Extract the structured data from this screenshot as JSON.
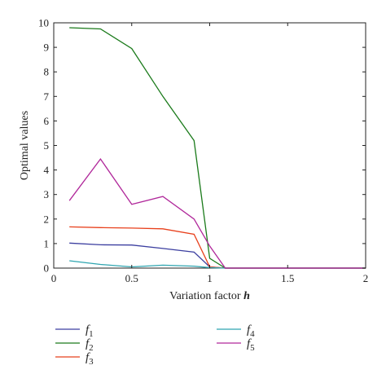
{
  "chart_data": {
    "type": "line",
    "title": "",
    "xlabel": "Variation factor",
    "xlabel_var": "h",
    "ylabel": "Optimal values",
    "xlim": [
      0,
      2
    ],
    "ylim": [
      0,
      10
    ],
    "xticks": [
      0,
      0.5,
      1,
      1.5,
      2
    ],
    "xtick_labels": [
      "0",
      "0.5",
      "1",
      "1.5",
      "2"
    ],
    "yticks": [
      0,
      1,
      2,
      3,
      4,
      5,
      6,
      7,
      8,
      9,
      10
    ],
    "ytick_labels": [
      "0",
      "1",
      "2",
      "3",
      "4",
      "5",
      "6",
      "7",
      "8",
      "9",
      "10"
    ],
    "grid": false,
    "legend_position": "bottom",
    "series": [
      {
        "name": "f",
        "sub": "1",
        "color": "#3c3fa0",
        "x": [
          0.1,
          0.3,
          0.5,
          0.7,
          0.9,
          1.0,
          1.1,
          1.3,
          1.5,
          1.7,
          1.9,
          2.0
        ],
        "y": [
          1.02,
          0.95,
          0.94,
          0.8,
          0.65,
          0.05,
          0,
          0,
          0,
          0,
          0,
          0
        ]
      },
      {
        "name": "f",
        "sub": "2",
        "color": "#1a7a1a",
        "x": [
          0.1,
          0.3,
          0.5,
          0.7,
          0.9,
          1.0,
          1.1,
          1.3,
          1.5,
          1.7,
          1.9,
          2.0
        ],
        "y": [
          9.8,
          9.75,
          8.95,
          7.0,
          5.2,
          0.4,
          0,
          0,
          0,
          0,
          0,
          0
        ]
      },
      {
        "name": "f",
        "sub": "3",
        "color": "#e8401c",
        "x": [
          0.1,
          0.3,
          0.5,
          0.7,
          0.9,
          1.0,
          1.1,
          1.3,
          1.5,
          1.7,
          1.9,
          2.0
        ],
        "y": [
          1.68,
          1.65,
          1.63,
          1.6,
          1.38,
          0.05,
          0,
          0,
          0,
          0,
          0,
          0
        ]
      },
      {
        "name": "f",
        "sub": "4",
        "color": "#2fa5b0",
        "x": [
          0.1,
          0.3,
          0.5,
          0.7,
          0.9,
          1.0,
          1.1,
          1.3,
          1.5,
          1.7,
          1.9,
          2.0
        ],
        "y": [
          0.3,
          0.15,
          0.05,
          0.12,
          0.08,
          0.02,
          0,
          0,
          0,
          0,
          0,
          0
        ]
      },
      {
        "name": "f",
        "sub": "5",
        "color": "#b0279a",
        "x": [
          0.1,
          0.3,
          0.5,
          0.7,
          0.9,
          1.0,
          1.1,
          1.3,
          1.5,
          1.7,
          1.9,
          2.0
        ],
        "y": [
          2.75,
          4.45,
          2.6,
          2.92,
          2.0,
          0.9,
          0,
          0,
          0,
          0,
          0,
          0
        ]
      }
    ]
  }
}
